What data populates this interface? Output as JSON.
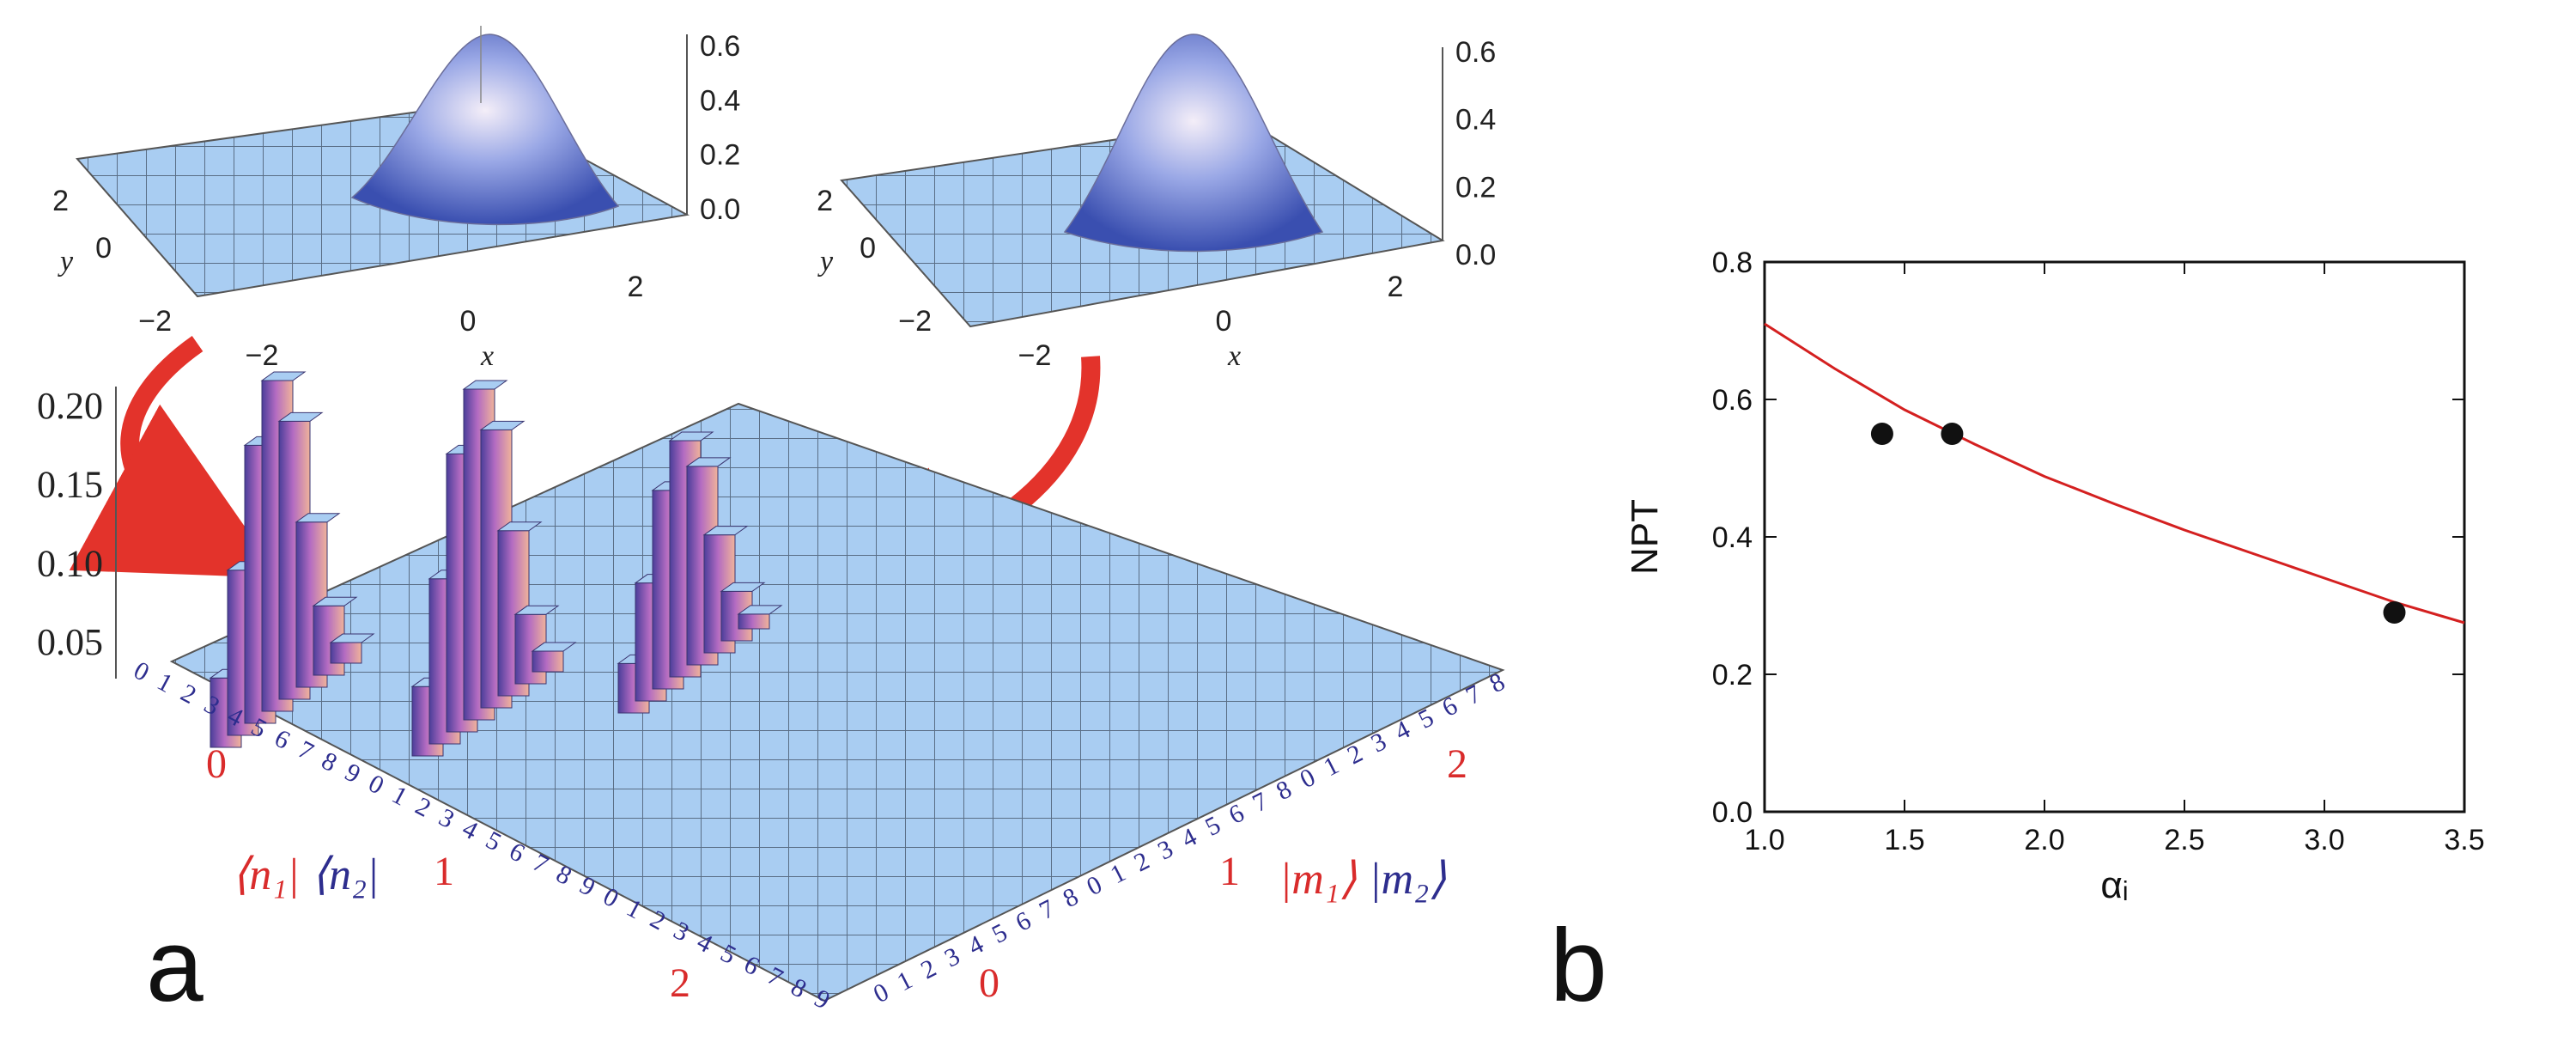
{
  "panels": {
    "a": {
      "label": "a"
    },
    "b": {
      "label": "b"
    }
  },
  "chart_data": [
    {
      "type": "surface3d",
      "panel": "a",
      "position_word": "top-left",
      "xlabel": "x",
      "ylabel": "y",
      "xticks": [
        "−2",
        "0",
        "2"
      ],
      "yticks": [
        "2",
        "0",
        "−2"
      ],
      "zticks": [
        "0.0",
        "0.2",
        "0.4",
        "0.6"
      ],
      "zlim": [
        0,
        0.6
      ],
      "peak": {
        "x": 0.3,
        "y": 1.0,
        "z": 0.6
      }
    },
    {
      "type": "surface3d",
      "panel": "a",
      "position_word": "top-right",
      "xlabel": "x",
      "ylabel": "y",
      "xticks": [
        "−2",
        "0",
        "2"
      ],
      "yticks": [
        "2",
        "0",
        "−2"
      ],
      "zticks": [
        "0.0",
        "0.2",
        "0.4",
        "0.6"
      ],
      "zlim": [
        0,
        0.6
      ],
      "peak": {
        "x": 0.0,
        "y": 1.5,
        "z": 0.6
      }
    },
    {
      "type": "bar3d",
      "panel": "a",
      "zticks": [
        "0.05",
        "0.10",
        "0.15",
        "0.20"
      ],
      "zlim": [
        0,
        0.22
      ],
      "row_index_labels": [
        "0",
        "1",
        "2",
        "3",
        "4",
        "5",
        "6",
        "7",
        "8",
        "9"
      ],
      "col_index_labels": [
        "0",
        "1",
        "2",
        "3",
        "4",
        "5",
        "6",
        "7",
        "8"
      ],
      "row_blocks": [
        "0",
        "1",
        "2"
      ],
      "col_blocks": [
        "0",
        "1",
        "2"
      ],
      "row_axis_label": {
        "n1": "⟨n₁|",
        "n2": "⟨n₂|"
      },
      "col_axis_label": {
        "m1": "|m₁⟩",
        "m2": "|m₂⟩"
      },
      "peak_blocks": [
        {
          "row_block": "0",
          "col_block": "0",
          "peak": 0.21
        },
        {
          "row_block": "1",
          "col_block": "0",
          "peak": 0.21
        },
        {
          "row_block": "0",
          "col_block": "1",
          "peak": 0.15
        }
      ]
    },
    {
      "type": "scatter",
      "panel": "b",
      "xlabel": "αᵢ",
      "ylabel": "NPT",
      "xlim": [
        1.0,
        3.5
      ],
      "ylim": [
        0.0,
        0.8
      ],
      "xticks": [
        "1.0",
        "1.5",
        "2.0",
        "2.5",
        "3.0",
        "3.5"
      ],
      "yticks": [
        "0.0",
        "0.2",
        "0.4",
        "0.6",
        "0.8"
      ],
      "grid": false,
      "series": [
        {
          "kind": "points",
          "color": "#111111",
          "points": [
            {
              "x": 1.42,
              "y": 0.55
            },
            {
              "x": 1.67,
              "y": 0.55
            },
            {
              "x": 3.25,
              "y": 0.29
            }
          ]
        },
        {
          "kind": "line",
          "color": "#d42020",
          "points": [
            {
              "x": 1.0,
              "y": 0.71
            },
            {
              "x": 1.25,
              "y": 0.645
            },
            {
              "x": 1.5,
              "y": 0.585
            },
            {
              "x": 1.75,
              "y": 0.535
            },
            {
              "x": 2.0,
              "y": 0.488
            },
            {
              "x": 2.25,
              "y": 0.448
            },
            {
              "x": 2.5,
              "y": 0.41
            },
            {
              "x": 2.75,
              "y": 0.375
            },
            {
              "x": 3.0,
              "y": 0.34
            },
            {
              "x": 3.25,
              "y": 0.305
            },
            {
              "x": 3.5,
              "y": 0.275
            }
          ]
        }
      ]
    }
  ],
  "colors": {
    "surface": "#9fc4ee",
    "surface_peak": "#3a4fb0",
    "bar_side_pink": "#e79ab9",
    "bar_side_purple": "#4b3e9a",
    "index_blue": "#2d2d8e",
    "index_red": "#d92b2b",
    "arrow_red": "#e3332b",
    "fit_line": "#d42020"
  }
}
